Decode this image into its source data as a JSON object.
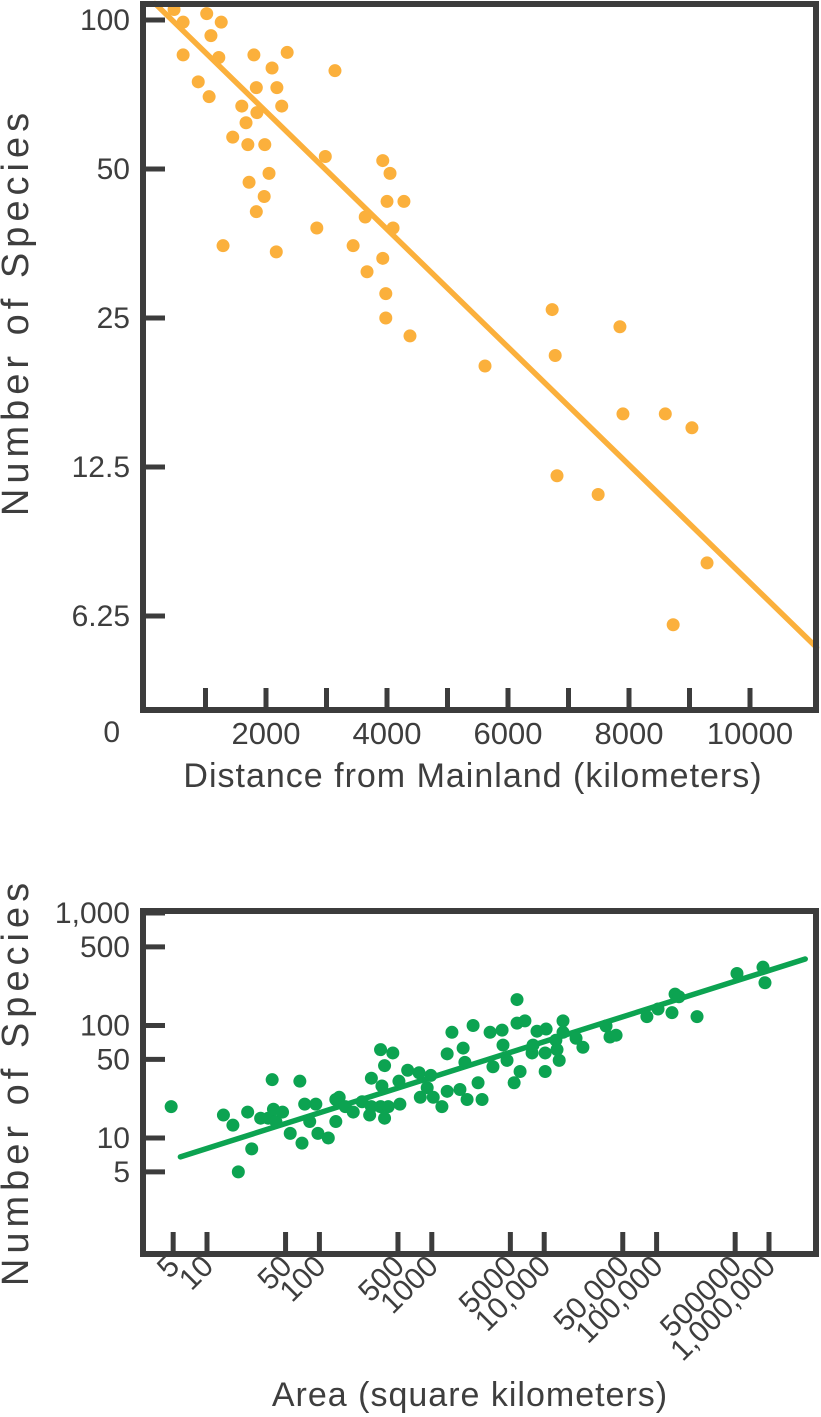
{
  "figure": {
    "description": "Island biogeography scatter plots",
    "background": "#ffffff",
    "text_color": "#3E3E3E",
    "axis_color": "#3C3C3C"
  },
  "chart_data": [
    {
      "id": "distance",
      "type": "scatter",
      "title": "",
      "xlabel": "Distance from Mainland (kilometers)",
      "ylabel": "Number of Species",
      "dot_color": "#FBB03C",
      "line_color": "#FBB03C",
      "x_axis": {
        "scale": "linear",
        "domain": [
          0,
          11100
        ],
        "origin_label": "0",
        "ticks": [
          {
            "v": 1000,
            "label": ""
          },
          {
            "v": 2000,
            "label": "2000"
          },
          {
            "v": 3000,
            "label": ""
          },
          {
            "v": 4000,
            "label": "4000"
          },
          {
            "v": 5000,
            "label": ""
          },
          {
            "v": 6000,
            "label": "6000"
          },
          {
            "v": 7000,
            "label": ""
          },
          {
            "v": 8000,
            "label": "8000"
          },
          {
            "v": 9000,
            "label": ""
          },
          {
            "v": 10000,
            "label": "10000"
          }
        ]
      },
      "y_axis": {
        "scale": "log2",
        "domain": [
          4,
          110
        ],
        "ticks": [
          {
            "v": 100,
            "label": "100"
          },
          {
            "v": 50,
            "label": "50"
          },
          {
            "v": 25,
            "label": "25"
          },
          {
            "v": 12.5,
            "label": "12.5"
          },
          {
            "v": 6.25,
            "label": "6.25"
          }
        ]
      },
      "points": [
        [
          480,
          105
        ],
        [
          1020,
          103
        ],
        [
          630,
          99
        ],
        [
          1260,
          99
        ],
        [
          1090,
          93
        ],
        [
          630,
          85
        ],
        [
          1220,
          84
        ],
        [
          1800,
          85
        ],
        [
          2350,
          86
        ],
        [
          2100,
          80
        ],
        [
          3140,
          79
        ],
        [
          880,
          75
        ],
        [
          1060,
          70
        ],
        [
          1840,
          73
        ],
        [
          2180,
          73
        ],
        [
          1600,
          67
        ],
        [
          2260,
          67
        ],
        [
          1850,
          65
        ],
        [
          1670,
          62
        ],
        [
          1450,
          58
        ],
        [
          1700,
          56
        ],
        [
          1980,
          56
        ],
        [
          2980,
          53
        ],
        [
          3930,
          52
        ],
        [
          4050,
          49
        ],
        [
          2050,
          49
        ],
        [
          1720,
          47
        ],
        [
          1970,
          44
        ],
        [
          4000,
          43
        ],
        [
          4280,
          43
        ],
        [
          1840,
          41
        ],
        [
          3640,
          40
        ],
        [
          4100,
          38
        ],
        [
          2840,
          38
        ],
        [
          1290,
          35
        ],
        [
          3440,
          35
        ],
        [
          2170,
          34
        ],
        [
          3930,
          33
        ],
        [
          3670,
          31
        ],
        [
          3980,
          28
        ],
        [
          3980,
          25
        ],
        [
          4380,
          23
        ],
        [
          6730,
          26
        ],
        [
          7850,
          24
        ],
        [
          6780,
          21
        ],
        [
          5620,
          20
        ],
        [
          7900,
          16
        ],
        [
          8600,
          16
        ],
        [
          9040,
          15
        ],
        [
          6810,
          12
        ],
        [
          7490,
          11
        ],
        [
          9290,
          8
        ],
        [
          8730,
          6
        ]
      ],
      "trendline": [
        [
          165,
          108
        ],
        [
          11100,
          5.4
        ]
      ]
    },
    {
      "id": "area",
      "type": "scatter",
      "title": "",
      "xlabel": "Area (square kilometers)",
      "ylabel": "Number of Species",
      "dot_color": "#0CA351",
      "line_color": "#0CA351",
      "x_axis": {
        "scale": "log10",
        "domain": [
          2.7,
          2300000
        ],
        "ticks": [
          {
            "v": 5,
            "label": "5"
          },
          {
            "v": 10,
            "label": "10"
          },
          {
            "v": 50,
            "label": "50"
          },
          {
            "v": 100,
            "label": "100"
          },
          {
            "v": 500,
            "label": "500"
          },
          {
            "v": 1000,
            "label": "1000"
          },
          {
            "v": 5000,
            "label": "5000"
          },
          {
            "v": 10000,
            "label": "10,000"
          },
          {
            "v": 50000,
            "label": "50,000"
          },
          {
            "v": 100000,
            "label": "100,000"
          },
          {
            "v": 500000,
            "label": "500000"
          },
          {
            "v": 1000000,
            "label": "1,000,000"
          }
        ]
      },
      "y_axis": {
        "scale": "log10",
        "domain": [
          3,
          1000
        ],
        "ticks": [
          {
            "v": 1000,
            "label": "1,000"
          },
          {
            "v": 500,
            "label": "500"
          },
          {
            "v": 100,
            "label": "100"
          },
          {
            "v": 50,
            "label": "50"
          },
          {
            "v": 10,
            "label": "10"
          },
          {
            "v": 5,
            "label": "5"
          }
        ]
      },
      "points": [
        [
          4.8,
          19
        ],
        [
          14,
          16
        ],
        [
          17,
          13
        ],
        [
          19,
          5
        ],
        [
          23,
          17
        ],
        [
          25,
          8
        ],
        [
          30,
          15
        ],
        [
          35,
          15
        ],
        [
          38,
          33
        ],
        [
          39,
          18
        ],
        [
          41,
          14
        ],
        [
          47,
          17
        ],
        [
          55,
          11
        ],
        [
          67,
          32
        ],
        [
          70,
          9
        ],
        [
          74,
          20
        ],
        [
          82,
          14
        ],
        [
          93,
          20
        ],
        [
          97,
          11
        ],
        [
          120,
          10
        ],
        [
          140,
          22
        ],
        [
          140,
          14
        ],
        [
          150,
          23
        ],
        [
          170,
          19
        ],
        [
          200,
          17
        ],
        [
          240,
          21
        ],
        [
          280,
          16
        ],
        [
          290,
          19
        ],
        [
          290,
          34
        ],
        [
          350,
          19
        ],
        [
          350,
          61
        ],
        [
          360,
          29
        ],
        [
          380,
          44
        ],
        [
          380,
          15
        ],
        [
          410,
          19
        ],
        [
          450,
          57
        ],
        [
          510,
          32
        ],
        [
          520,
          20
        ],
        [
          610,
          40
        ],
        [
          770,
          38
        ],
        [
          790,
          23
        ],
        [
          910,
          28
        ],
        [
          980,
          36
        ],
        [
          1030,
          23
        ],
        [
          1230,
          19
        ],
        [
          1370,
          56
        ],
        [
          1370,
          26
        ],
        [
          1510,
          87
        ],
        [
          1780,
          27
        ],
        [
          1900,
          63
        ],
        [
          1970,
          47
        ],
        [
          2060,
          22
        ],
        [
          2330,
          100
        ],
        [
          2580,
          31
        ],
        [
          2800,
          22
        ],
        [
          3300,
          87
        ],
        [
          3500,
          43
        ],
        [
          4220,
          91
        ],
        [
          4300,
          67
        ],
        [
          4670,
          49
        ],
        [
          5400,
          31
        ],
        [
          5730,
          170
        ],
        [
          5730,
          105
        ],
        [
          6100,
          39
        ],
        [
          6740,
          110
        ],
        [
          7800,
          57
        ],
        [
          7950,
          67
        ],
        [
          8630,
          89
        ],
        [
          10200,
          57
        ],
        [
          10200,
          39
        ],
        [
          10400,
          93
        ],
        [
          12700,
          74
        ],
        [
          13000,
          61
        ],
        [
          13600,
          49
        ],
        [
          14700,
          110
        ],
        [
          14700,
          87
        ],
        [
          19200,
          77
        ],
        [
          22100,
          64
        ],
        [
          35500,
          99
        ],
        [
          38500,
          79
        ],
        [
          43600,
          82
        ],
        [
          82000,
          120
        ],
        [
          103000,
          140
        ],
        [
          137000,
          130
        ],
        [
          146000,
          190
        ],
        [
          158000,
          180
        ],
        [
          229000,
          120
        ],
        [
          519000,
          290
        ],
        [
          884000,
          330
        ],
        [
          921000,
          240
        ]
      ],
      "trendline": [
        [
          5.8,
          6.8
        ],
        [
          2100000,
          390
        ]
      ]
    }
  ]
}
